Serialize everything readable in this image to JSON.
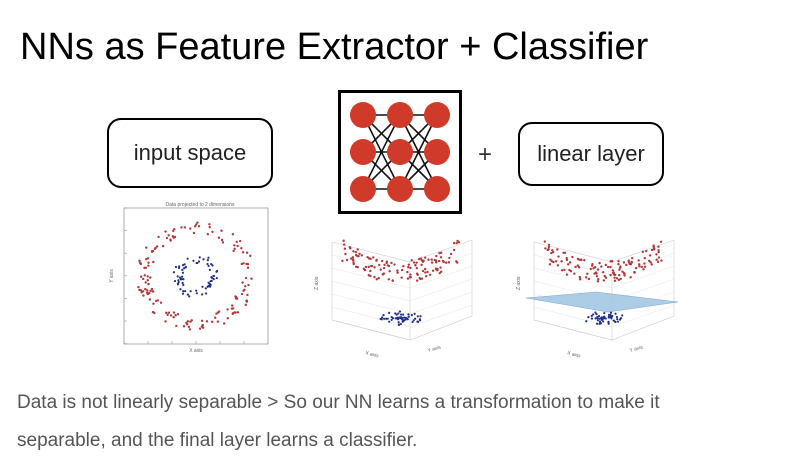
{
  "title": "NNs as Feature Extractor + Classifier",
  "diagram": {
    "input_label": "input space",
    "plus_symbol": "+",
    "output_label": "linear layer",
    "network_icon": "neural-network-icon",
    "network_layers": [
      3,
      3,
      3
    ],
    "node_color": "#d03a2a"
  },
  "plots": {
    "input_space": {
      "title": "Data projected to 2 dimensions",
      "xlabel": "X axis",
      "ylabel": "Y axis"
    },
    "transformed": {
      "xlabel": "X axis",
      "ylabel": "Y axis",
      "zlabel": "Z axis"
    },
    "classified": {
      "xlabel": "X axis",
      "ylabel": "Y axis",
      "zlabel": "Z axis",
      "plane_color": "#9fc3e2"
    }
  },
  "colors": {
    "class_outer": "#b03a3a",
    "class_inner": "#1f2f8a"
  },
  "caption": {
    "line1": "Data is not linearly separable > So our NN learns a transformation to make it",
    "line2": "separable, and the final layer learns a classifier."
  }
}
